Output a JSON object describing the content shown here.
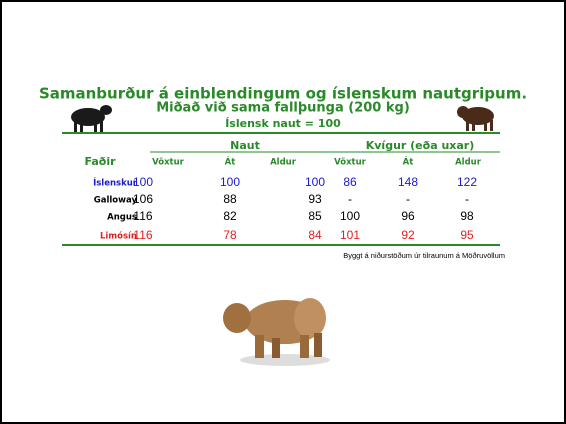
{
  "header": {
    "title": "Samanburður á einblendingum og íslenskum nautgripum.",
    "subtitle": "Miðað við sama fallþunga (200 kg)",
    "reference": "Íslensk naut = 100",
    "title_color": "#2a8a2a"
  },
  "table": {
    "groups": [
      "Naut",
      "Kvígur (eða uxar)"
    ],
    "columns": [
      "Faðir",
      "Vöxtur",
      "Át",
      "Aldur",
      "Vöxtur",
      "Át",
      "Aldur"
    ],
    "rows": [
      {
        "label": "Íslenskur",
        "color": "#1a1acc",
        "cells": [
          100,
          100,
          100,
          86,
          148,
          122
        ]
      },
      {
        "label": "Galloway",
        "color": "#000000",
        "cells": [
          106,
          88,
          93,
          "-",
          "-",
          "-"
        ]
      },
      {
        "label": "Angus",
        "color": "#000000",
        "cells": [
          116,
          82,
          85,
          100,
          96,
          98
        ]
      },
      {
        "label": "Limósín",
        "color": "#e02020",
        "cells": [
          116,
          78,
          84,
          101,
          92,
          95
        ]
      }
    ]
  },
  "footer": {
    "source": "Byggt á niðurstöðum úr tilraunum á Möðruvöllum"
  }
}
